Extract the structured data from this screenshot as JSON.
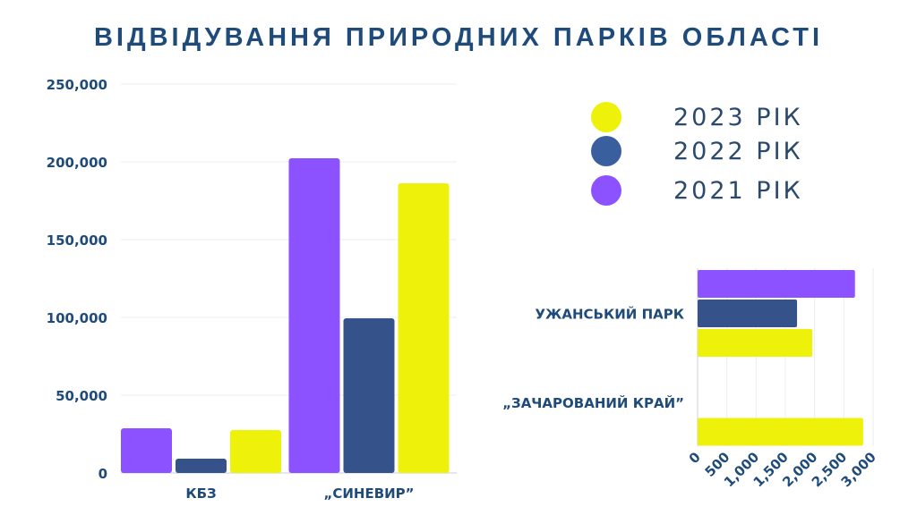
{
  "title": "ВІДВІДУВАННЯ ПРИРОДНИХ ПАРКІВ ОБЛАСТІ",
  "legend": [
    {
      "label": "2023 РІК",
      "color": "#eef20a"
    },
    {
      "label": "2022 РІК",
      "color": "#3a5f9e"
    },
    {
      "label": "2021 РІК",
      "color": "#8c52ff"
    }
  ],
  "chart_data": [
    {
      "type": "bar",
      "orientation": "vertical",
      "categories": [
        "КБЗ",
        "„СИНЕВИР”"
      ],
      "series": [
        {
          "name": "2021 РІК",
          "color": "#8c52ff",
          "values": [
            28700,
            202300
          ]
        },
        {
          "name": "2022 РІК",
          "color": "#36528a",
          "values": [
            9200,
            99400
          ]
        },
        {
          "name": "2023 РІК",
          "color": "#eef20a",
          "values": [
            27600,
            186200
          ]
        }
      ],
      "ylim": [
        0,
        250000
      ],
      "yticks": [
        "0",
        "50,000",
        "100,000",
        "150,000",
        "200,000",
        "250,000"
      ],
      "grid": true
    },
    {
      "type": "bar",
      "orientation": "horizontal",
      "categories": [
        "УЖАНСЬКИЙ ПАРК",
        "„ЗАЧАРОВАНИЙ КРАЙ”"
      ],
      "series": [
        {
          "name": "2021 РІК",
          "color": "#8c52ff",
          "values": [
            2690,
            0
          ]
        },
        {
          "name": "2022 РІК",
          "color": "#36528a",
          "values": [
            1700,
            0
          ]
        },
        {
          "name": "2023 РІК",
          "color": "#eef20a",
          "values": [
            1960,
            2830
          ]
        }
      ],
      "xlim": [
        0,
        3000
      ],
      "xticks": [
        "0",
        "500",
        "1,000",
        "1,500",
        "2,000",
        "2,500",
        "3,000"
      ],
      "grid": true
    }
  ]
}
